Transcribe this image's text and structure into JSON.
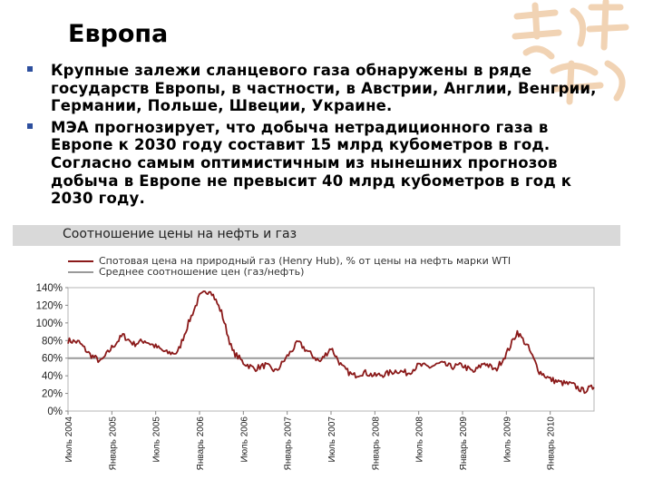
{
  "page": {
    "title": "Европа",
    "bullets": [
      "Крупные залежи сланцевого газа обнаружены в ряде государств Европы, в частности, в Австрии, Англии, Венгрии, Германии, Польше, Швеции, Украине.",
      "МЭА прогнозирует, что добыча нетрадиционного газа в Европе к 2030 году составит 15 млрд кубометров в год. Согласно самым оптимистичным из нынешних прогнозов добыча в Европе не превысит 40 млрд кубометров в год к 2030 году."
    ]
  },
  "colors": {
    "series": "#8b1a1a",
    "average": "#9a9a9a",
    "bullet": "#2d4f9e",
    "header_bg": "#d9d9d9"
  },
  "chart_data": {
    "type": "line",
    "title": "Соотношение цены на нефть и газ",
    "legend": "top-left",
    "y_tick_labels": [
      "0%",
      "20%",
      "40%",
      "60%",
      "80%",
      "100%",
      "120%",
      "140%"
    ],
    "x_tick_labels": [
      "Июль 2004",
      "Январь 2005",
      "Июль 2005",
      "Январь 2006",
      "Июль 2006",
      "Январь 2007",
      "Июль 2007",
      "Январь 2008",
      "Июль 2008",
      "Январь 2009",
      "Июль 2009",
      "Январь 2010"
    ],
    "ylim": [
      0,
      1.4
    ],
    "series": [
      {
        "name": "Спотовая цена на природный газ (Henry Hub), % от цены на нефть марки WTI",
        "x": [
          0,
          0.25,
          0.5,
          0.75,
          1,
          1.25,
          1.5,
          1.75,
          2,
          2.25,
          2.5,
          2.75,
          3,
          3.25,
          3.5,
          3.75,
          4,
          4.25,
          4.5,
          4.75,
          5,
          5.25,
          5.5,
          5.75,
          6,
          6.25,
          6.5,
          6.75,
          7,
          7.25,
          7.5,
          7.75,
          8,
          8.25,
          8.5,
          8.75,
          9,
          9.25,
          9.5,
          9.75,
          10,
          10.25,
          10.5,
          10.75,
          11,
          11.25,
          11.5,
          11.75,
          12
        ],
        "values": [
          0.8,
          0.78,
          0.64,
          0.56,
          0.72,
          0.86,
          0.76,
          0.8,
          0.73,
          0.66,
          0.66,
          1.0,
          1.3,
          1.38,
          1.12,
          0.68,
          0.55,
          0.48,
          0.52,
          0.45,
          0.62,
          0.78,
          0.66,
          0.56,
          0.72,
          0.5,
          0.4,
          0.44,
          0.4,
          0.42,
          0.46,
          0.43,
          0.52,
          0.5,
          0.54,
          0.5,
          0.52,
          0.44,
          0.55,
          0.46,
          0.65,
          0.9,
          0.72,
          0.45,
          0.36,
          0.32,
          0.3,
          0.23,
          0.27
        ]
      },
      {
        "name": "Среднее соотношение цен (газ/нефть)",
        "y": 0.6
      }
    ]
  }
}
